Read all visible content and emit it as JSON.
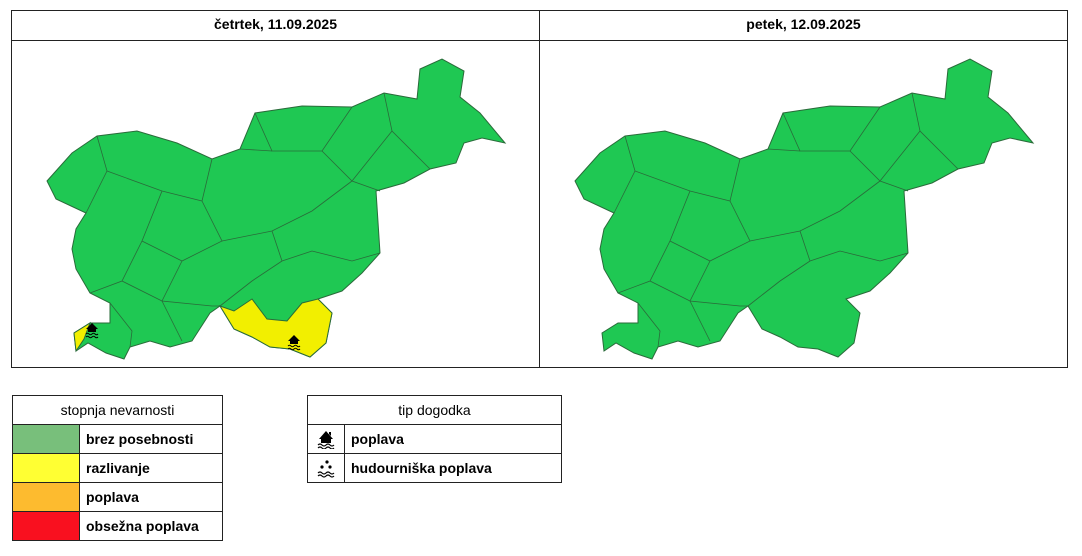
{
  "maps": [
    {
      "date": "četrtek, 11.09.2025",
      "regions": {
        "default": "brez posebnosti",
        "southeast": "razlivanje",
        "southwest_coast": "razlivanje"
      },
      "event_icons": [
        "poplava",
        "poplava"
      ]
    },
    {
      "date": "petek, 12.09.2025",
      "regions": {
        "default": "brez posebnosti"
      }
    }
  ],
  "colors": {
    "map_green": "#1fc853",
    "map_yellow": "#f2ef00",
    "border": "#2a6b3a"
  },
  "legend_level": {
    "title": "stopnja nevarnosti",
    "items": [
      {
        "label": "brez posebnosti",
        "color": "#78bf7b"
      },
      {
        "label": "razlivanje",
        "color": "#ffff33"
      },
      {
        "label": "poplava",
        "color": "#fdbb2f"
      },
      {
        "label": "obsežna poplava",
        "color": "#f9101f"
      }
    ]
  },
  "legend_type": {
    "title": "tip dogodka",
    "items": [
      {
        "label": "poplava",
        "icon": "flooded-house-icon"
      },
      {
        "label": "hudourniška poplava",
        "icon": "torrential-rain-flood-icon"
      }
    ]
  }
}
